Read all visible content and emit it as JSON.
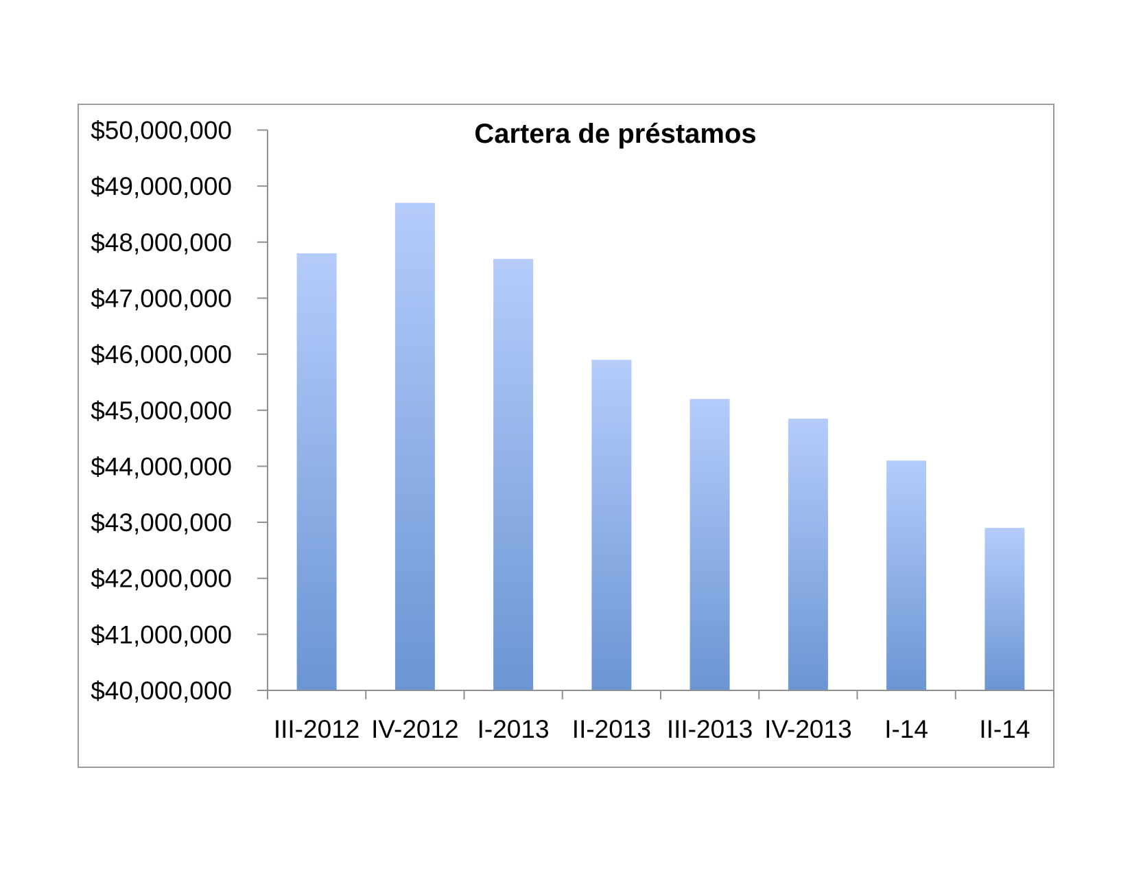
{
  "chart_data": {
    "type": "bar",
    "title": "Cartera de préstamos",
    "xlabel": "",
    "ylabel": "",
    "categories": [
      "III-2012",
      "IV-2012",
      "I-2013",
      "II-2013",
      "III-2013",
      "IV-2013",
      "I-14",
      "II-14"
    ],
    "values": [
      47800000,
      48700000,
      47700000,
      45900000,
      45200000,
      44850000,
      44100000,
      42900000
    ],
    "ylim": [
      40000000,
      50000000
    ],
    "yticks": [
      40000000,
      41000000,
      42000000,
      43000000,
      44000000,
      45000000,
      46000000,
      47000000,
      48000000,
      49000000,
      50000000
    ],
    "ytick_labels": [
      "$40,000,000",
      "$41,000,000",
      "$42,000,000",
      "$43,000,000",
      "$44,000,000",
      "$45,000,000",
      "$46,000,000",
      "$47,000,000",
      "$48,000,000",
      "$49,000,000",
      "$50,000,000"
    ],
    "grid": false,
    "legend": "none"
  },
  "colors": {
    "bar_top": "#b5ccfb",
    "bar_bottom": "#6b95d3",
    "axis": "#8f8f8f",
    "frame": "#9a9a9a"
  }
}
